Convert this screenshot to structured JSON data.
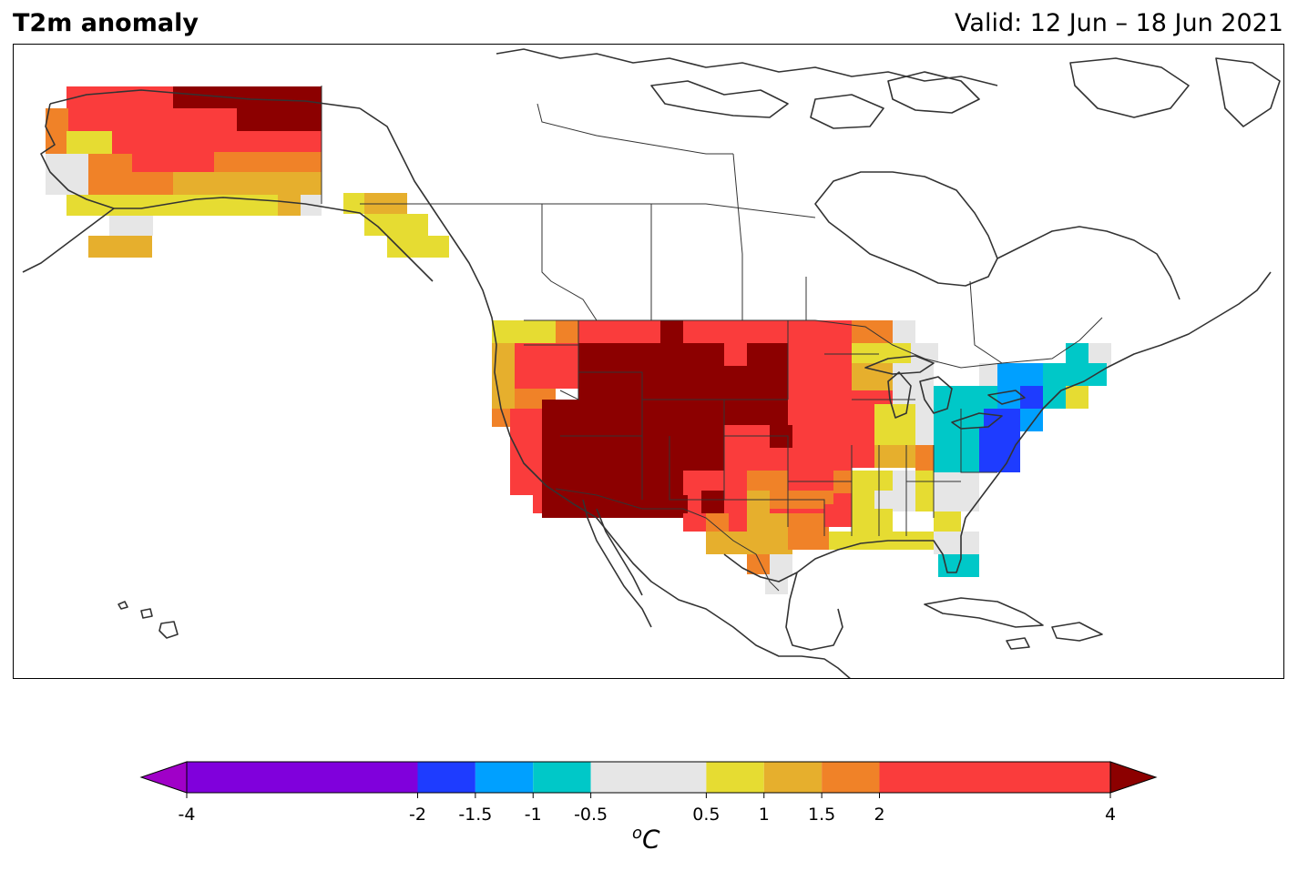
{
  "title": "T2m anomaly",
  "valid": "Valid: 12 Jun – 18 Jun 2021",
  "unit_base": "C",
  "unit_sup": "o",
  "colorbar": {
    "bounds": [
      -4,
      -2,
      -1.5,
      -1,
      -0.5,
      0.5,
      1,
      1.5,
      2,
      4
    ],
    "tick_labels": [
      "-4",
      "-2",
      "-1.5",
      "-1",
      "-0.5",
      "0.5",
      "1",
      "1.5",
      "2",
      "4"
    ],
    "colors": [
      "#8000dc",
      "#1e3cff",
      "#00a0ff",
      "#00c8c8",
      "#e6e6e6",
      "#e6dc32",
      "#e6af2d",
      "#f08228",
      "#fa3c3c"
    ],
    "under_color": "#a000c8",
    "over_color": "#8c0000",
    "extend": "both"
  },
  "colors": {
    "dark_red": "#8c0000",
    "red": "#fa3c3c",
    "orange": "#f08228",
    "gold": "#e6af2d",
    "yellow": "#e6dc32",
    "gray": "#e6e6e6",
    "teal": "#00c8c8",
    "sky": "#00a0ff",
    "blue": "#1e3cff",
    "coast": "#333333"
  }
}
